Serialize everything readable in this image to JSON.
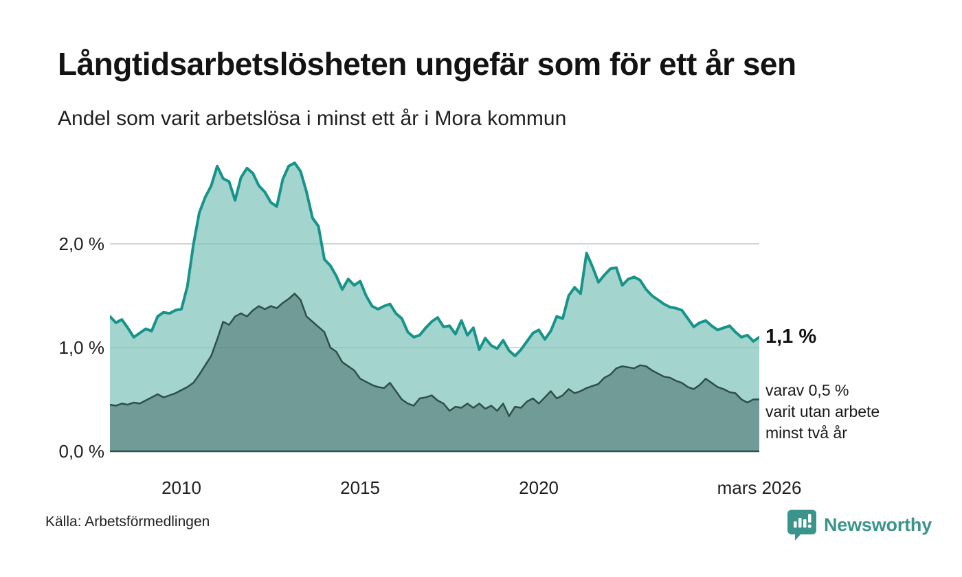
{
  "header": {
    "title": "Långtidsarbetslösheten ungefär som för ett år sen",
    "subtitle": "Andel som varit arbetslösa i minst ett år i Mora kommun"
  },
  "annotations": {
    "latest_value": "1,1 %",
    "sub_line1": "varav 0,5 %",
    "sub_line2": "varit utan arbete",
    "sub_line3": "minst två år"
  },
  "footer": {
    "source": "Källa: Arbetsförmedlingen",
    "brand": "Newsworthy"
  },
  "theme": {
    "line_teal": "#17948a",
    "fill_light": "#a3d4cd",
    "line_dark": "#2e4f4b",
    "fill_dark": "#709b96",
    "grid": "#dcdcdc",
    "axis": "#31504b",
    "brand_teal": "#3a948b",
    "text": "#1a1a1a"
  },
  "chart_data": {
    "type": "area",
    "title": "Långtidsarbetslösheten ungefär som för ett år sen",
    "subtitle": "Andel som varit arbetslösa i minst ett år i Mora kommun",
    "unit": "%",
    "x_start": 2008.0,
    "x_step": 0.16667,
    "xlim": [
      2008.0,
      2026.17
    ],
    "ylim": [
      0,
      2.87
    ],
    "grid": "horizontal",
    "legend": "none",
    "y_ticks": [
      {
        "value": 0,
        "label": "0,0 %"
      },
      {
        "value": 1,
        "label": "1,0 %"
      },
      {
        "value": 2,
        "label": "2,0 %"
      }
    ],
    "x_ticks": [
      {
        "year": 2010,
        "label": "2010"
      },
      {
        "year": 2015,
        "label": "2015"
      },
      {
        "year": 2020,
        "label": "2020"
      },
      {
        "year": 2026.17,
        "label": "mars 2026"
      }
    ],
    "series": [
      {
        "name": "Arbetslösa minst ett år",
        "end_label": "1,1 %",
        "line_color": "#17948a",
        "fill_color": "#a3d4cd",
        "line_width": 4,
        "values": [
          1.3,
          1.24,
          1.27,
          1.19,
          1.1,
          1.14,
          1.18,
          1.16,
          1.3,
          1.34,
          1.33,
          1.36,
          1.37,
          1.59,
          1.99,
          2.3,
          2.45,
          2.56,
          2.75,
          2.63,
          2.6,
          2.42,
          2.64,
          2.73,
          2.68,
          2.56,
          2.5,
          2.4,
          2.36,
          2.62,
          2.75,
          2.78,
          2.7,
          2.5,
          2.25,
          2.17,
          1.85,
          1.79,
          1.69,
          1.56,
          1.66,
          1.6,
          1.64,
          1.5,
          1.4,
          1.37,
          1.4,
          1.42,
          1.33,
          1.28,
          1.15,
          1.1,
          1.12,
          1.19,
          1.25,
          1.29,
          1.2,
          1.21,
          1.13,
          1.26,
          1.12,
          1.19,
          0.98,
          1.09,
          1.02,
          0.99,
          1.07,
          0.97,
          0.92,
          0.98,
          1.06,
          1.14,
          1.17,
          1.08,
          1.16,
          1.3,
          1.28,
          1.5,
          1.58,
          1.52,
          1.91,
          1.78,
          1.63,
          1.7,
          1.76,
          1.77,
          1.6,
          1.66,
          1.68,
          1.65,
          1.56,
          1.5,
          1.46,
          1.42,
          1.39,
          1.38,
          1.36,
          1.28,
          1.2,
          1.24,
          1.26,
          1.21,
          1.17,
          1.19,
          1.21,
          1.15,
          1.1,
          1.12,
          1.06,
          1.1
        ]
      },
      {
        "name": "Arbetslösa minst två år",
        "end_label": "0,5 %",
        "line_color": "#2e4f4b",
        "fill_color": "#709b96",
        "line_width": 2.5,
        "values": [
          0.45,
          0.44,
          0.46,
          0.45,
          0.47,
          0.46,
          0.49,
          0.52,
          0.55,
          0.52,
          0.54,
          0.56,
          0.59,
          0.62,
          0.66,
          0.74,
          0.83,
          0.92,
          1.08,
          1.25,
          1.22,
          1.3,
          1.33,
          1.3,
          1.36,
          1.4,
          1.37,
          1.4,
          1.38,
          1.43,
          1.47,
          1.52,
          1.46,
          1.3,
          1.25,
          1.2,
          1.15,
          1.0,
          0.96,
          0.86,
          0.82,
          0.78,
          0.7,
          0.67,
          0.64,
          0.62,
          0.61,
          0.66,
          0.58,
          0.5,
          0.46,
          0.44,
          0.51,
          0.52,
          0.54,
          0.49,
          0.46,
          0.39,
          0.43,
          0.42,
          0.46,
          0.42,
          0.46,
          0.41,
          0.44,
          0.39,
          0.46,
          0.34,
          0.43,
          0.42,
          0.48,
          0.51,
          0.46,
          0.52,
          0.58,
          0.51,
          0.54,
          0.6,
          0.56,
          0.58,
          0.61,
          0.63,
          0.65,
          0.71,
          0.74,
          0.8,
          0.82,
          0.81,
          0.8,
          0.83,
          0.82,
          0.78,
          0.75,
          0.72,
          0.71,
          0.68,
          0.66,
          0.62,
          0.6,
          0.64,
          0.7,
          0.66,
          0.62,
          0.6,
          0.57,
          0.56,
          0.5,
          0.47,
          0.5,
          0.5
        ]
      }
    ]
  }
}
